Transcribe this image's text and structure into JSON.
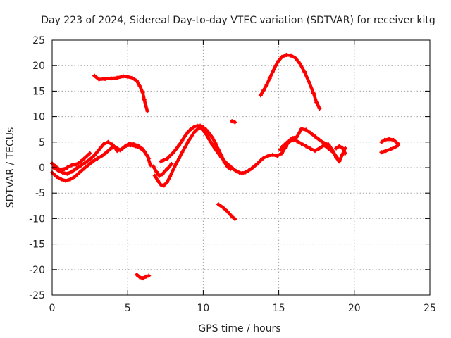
{
  "chart_data": {
    "type": "scatter",
    "title": "Day 223 of 2024, Sidereal Day-to-day VTEC variation (SDTVAR) for receiver kitg",
    "xlabel": "GPS time / hours",
    "ylabel": "SDTVAR / TECUs",
    "xlim": [
      0,
      25
    ],
    "ylim": [
      -25,
      25
    ],
    "xticks": [
      0,
      5,
      10,
      15,
      20,
      25
    ],
    "yticks": [
      -25,
      -20,
      -15,
      -10,
      -5,
      0,
      5,
      10,
      15,
      20,
      25
    ],
    "xtick_labels": [
      "0",
      "5",
      "10",
      "15",
      "20",
      "25"
    ],
    "ytick_labels": [
      "-25",
      "-20",
      "-15",
      "-10",
      "-5",
      "0",
      "5",
      "10",
      "15",
      "20",
      "25"
    ],
    "grid": true,
    "marker_color": "#ff0000",
    "series": [
      {
        "name": "track-1",
        "points": [
          [
            0.0,
            0.8
          ],
          [
            0.2,
            0.3
          ],
          [
            0.4,
            -0.2
          ],
          [
            0.6,
            -0.5
          ],
          [
            0.8,
            -0.3
          ],
          [
            1.0,
            0.0
          ],
          [
            1.3,
            0.5
          ],
          [
            1.6,
            0.6
          ],
          [
            1.9,
            1.2
          ],
          [
            2.2,
            2.0
          ],
          [
            2.5,
            2.8
          ]
        ]
      },
      {
        "name": "track-2",
        "points": [
          [
            0.0,
            -1.0
          ],
          [
            0.3,
            -1.8
          ],
          [
            0.6,
            -2.3
          ],
          [
            0.9,
            -2.6
          ],
          [
            1.2,
            -2.3
          ],
          [
            1.5,
            -1.8
          ],
          [
            1.8,
            -1.0
          ],
          [
            2.1,
            -0.2
          ],
          [
            2.4,
            0.5
          ],
          [
            2.7,
            1.2
          ],
          [
            3.0,
            1.8
          ],
          [
            3.3,
            2.3
          ],
          [
            3.6,
            3.0
          ],
          [
            3.9,
            3.8
          ],
          [
            4.2,
            4.0
          ],
          [
            4.5,
            3.4
          ],
          [
            4.8,
            4.1
          ],
          [
            5.1,
            4.7
          ],
          [
            5.4,
            4.6
          ],
          [
            5.7,
            4.3
          ],
          [
            6.0,
            3.6
          ],
          [
            6.3,
            2.3
          ],
          [
            6.5,
            0.5
          ]
        ]
      },
      {
        "name": "track-3",
        "points": [
          [
            0.1,
            0.0
          ],
          [
            0.4,
            -0.6
          ],
          [
            0.7,
            -1.0
          ],
          [
            1.0,
            -1.2
          ],
          [
            1.3,
            -0.8
          ],
          [
            1.6,
            -0.2
          ],
          [
            1.9,
            0.4
          ],
          [
            2.2,
            1.0
          ],
          [
            2.5,
            1.6
          ],
          [
            2.8,
            2.4
          ],
          [
            3.1,
            3.5
          ],
          [
            3.4,
            4.6
          ],
          [
            3.7,
            5.0
          ],
          [
            4.0,
            4.5
          ],
          [
            4.3,
            3.3
          ],
          [
            4.6,
            3.6
          ],
          [
            4.9,
            4.3
          ],
          [
            5.2,
            4.4
          ],
          [
            5.5,
            4.2
          ],
          [
            5.8,
            3.9
          ],
          [
            6.1,
            3.2
          ],
          [
            6.4,
            1.8
          ]
        ]
      },
      {
        "name": "track-4",
        "points": [
          [
            2.8,
            18.0
          ],
          [
            3.1,
            17.3
          ],
          [
            3.5,
            17.4
          ],
          [
            3.9,
            17.5
          ],
          [
            4.3,
            17.6
          ],
          [
            4.7,
            17.9
          ],
          [
            5.0,
            17.8
          ],
          [
            5.3,
            17.6
          ],
          [
            5.6,
            17.0
          ],
          [
            5.8,
            16.0
          ],
          [
            6.0,
            14.7
          ],
          [
            6.1,
            13.3
          ],
          [
            6.2,
            12.1
          ],
          [
            6.3,
            11.1
          ]
        ]
      },
      {
        "name": "track-5",
        "points": [
          [
            6.7,
            0.2
          ],
          [
            6.9,
            -0.8
          ],
          [
            7.1,
            -1.6
          ],
          [
            7.3,
            -1.3
          ],
          [
            7.5,
            -0.6
          ],
          [
            7.7,
            0.0
          ],
          [
            7.9,
            0.7
          ]
        ]
      },
      {
        "name": "track-6",
        "points": [
          [
            6.8,
            -1.6
          ],
          [
            7.0,
            -2.6
          ],
          [
            7.2,
            -3.4
          ],
          [
            7.4,
            -3.5
          ],
          [
            7.6,
            -2.9
          ],
          [
            7.8,
            -1.8
          ],
          [
            8.0,
            -0.5
          ],
          [
            8.2,
            0.7
          ],
          [
            8.4,
            1.8
          ],
          [
            8.6,
            3.0
          ],
          [
            8.8,
            4.0
          ],
          [
            9.0,
            5.1
          ],
          [
            9.2,
            6.0
          ],
          [
            9.4,
            6.9
          ],
          [
            9.6,
            7.5
          ],
          [
            9.8,
            7.8
          ],
          [
            10.0,
            7.3
          ],
          [
            10.2,
            6.5
          ],
          [
            10.4,
            5.5
          ],
          [
            10.6,
            4.5
          ],
          [
            10.8,
            3.6
          ],
          [
            11.0,
            2.8
          ],
          [
            11.2,
            2.0
          ],
          [
            11.4,
            1.3
          ],
          [
            11.6,
            0.7
          ],
          [
            11.8,
            0.2
          ],
          [
            12.0,
            -0.3
          ],
          [
            12.2,
            -0.7
          ],
          [
            12.4,
            -1.0
          ],
          [
            12.6,
            -1.1
          ],
          [
            12.8,
            -0.9
          ],
          [
            13.0,
            -0.6
          ],
          [
            13.2,
            -0.2
          ],
          [
            13.4,
            0.3
          ],
          [
            13.6,
            0.8
          ],
          [
            13.8,
            1.4
          ],
          [
            14.0,
            1.9
          ],
          [
            14.3,
            2.3
          ],
          [
            14.6,
            2.5
          ],
          [
            14.9,
            2.3
          ],
          [
            15.2,
            2.8
          ],
          [
            15.4,
            3.8
          ],
          [
            15.6,
            4.8
          ],
          [
            15.8,
            5.3
          ],
          [
            16.0,
            5.5
          ],
          [
            16.2,
            5.2
          ],
          [
            16.5,
            4.7
          ],
          [
            16.8,
            4.2
          ],
          [
            17.1,
            3.7
          ],
          [
            17.4,
            3.3
          ],
          [
            17.7,
            3.8
          ],
          [
            18.0,
            4.4
          ],
          [
            18.3,
            3.7
          ],
          [
            18.6,
            3.0
          ],
          [
            18.8,
            2.2
          ],
          [
            19.0,
            1.4
          ]
        ]
      },
      {
        "name": "track-7",
        "points": [
          [
            7.2,
            1.2
          ],
          [
            7.4,
            1.5
          ],
          [
            7.6,
            1.7
          ],
          [
            7.8,
            2.3
          ],
          [
            8.0,
            2.9
          ],
          [
            8.2,
            3.6
          ],
          [
            8.4,
            4.4
          ],
          [
            8.6,
            5.3
          ],
          [
            8.8,
            6.2
          ],
          [
            9.0,
            7.0
          ],
          [
            9.2,
            7.6
          ],
          [
            9.4,
            8.0
          ],
          [
            9.6,
            8.2
          ],
          [
            9.8,
            8.2
          ],
          [
            10.0,
            7.9
          ],
          [
            10.2,
            7.4
          ],
          [
            10.4,
            6.7
          ],
          [
            10.6,
            5.9
          ],
          [
            10.8,
            4.8
          ],
          [
            11.0,
            3.6
          ],
          [
            11.2,
            2.4
          ],
          [
            11.4,
            1.1
          ],
          [
            11.6,
            0.2
          ],
          [
            11.8,
            -0.3
          ]
        ]
      },
      {
        "name": "track-8",
        "points": [
          [
            11.0,
            -7.2
          ],
          [
            11.3,
            -7.8
          ],
          [
            11.6,
            -8.6
          ],
          [
            11.9,
            -9.6
          ],
          [
            12.1,
            -10.1
          ]
        ]
      },
      {
        "name": "track-9",
        "points": [
          [
            11.9,
            9.1
          ],
          [
            12.1,
            8.9
          ]
        ]
      },
      {
        "name": "track-10",
        "points": [
          [
            13.8,
            14.2
          ],
          [
            14.0,
            15.2
          ],
          [
            14.2,
            16.2
          ],
          [
            14.4,
            17.5
          ],
          [
            14.6,
            18.8
          ],
          [
            14.8,
            20.0
          ],
          [
            15.0,
            21.0
          ],
          [
            15.2,
            21.7
          ],
          [
            15.5,
            22.1
          ],
          [
            15.8,
            22.0
          ],
          [
            16.1,
            21.5
          ],
          [
            16.4,
            20.4
          ],
          [
            16.7,
            18.8
          ],
          [
            17.0,
            16.8
          ],
          [
            17.3,
            14.6
          ],
          [
            17.5,
            12.8
          ],
          [
            17.7,
            11.6
          ]
        ]
      },
      {
        "name": "track-11",
        "points": [
          [
            15.1,
            3.5
          ],
          [
            15.3,
            4.3
          ],
          [
            15.6,
            5.1
          ],
          [
            15.9,
            5.8
          ],
          [
            16.2,
            6.0
          ],
          [
            16.5,
            7.6
          ],
          [
            16.8,
            7.4
          ],
          [
            17.1,
            6.8
          ],
          [
            17.4,
            6.1
          ],
          [
            17.7,
            5.4
          ],
          [
            18.0,
            4.8
          ],
          [
            18.3,
            4.5
          ],
          [
            18.6,
            3.2
          ],
          [
            18.8,
            2.0
          ],
          [
            19.0,
            1.2
          ],
          [
            19.2,
            2.5
          ],
          [
            19.4,
            3.8
          ]
        ]
      },
      {
        "name": "track-12",
        "points": [
          [
            18.8,
            3.8
          ],
          [
            19.0,
            4.2
          ],
          [
            19.2,
            3.9
          ],
          [
            19.4,
            2.8
          ]
        ]
      },
      {
        "name": "track-13",
        "points": [
          [
            5.6,
            -21.0
          ],
          [
            5.8,
            -21.5
          ],
          [
            6.0,
            -21.7
          ],
          [
            6.2,
            -21.4
          ],
          [
            6.4,
            -21.2
          ]
        ]
      },
      {
        "name": "track-14",
        "points": [
          [
            21.8,
            5.0
          ],
          [
            22.0,
            5.4
          ],
          [
            22.3,
            5.6
          ],
          [
            22.6,
            5.4
          ],
          [
            22.9,
            4.7
          ]
        ]
      },
      {
        "name": "track-15",
        "points": [
          [
            21.8,
            3.0
          ],
          [
            22.1,
            3.3
          ],
          [
            22.4,
            3.6
          ],
          [
            22.7,
            4.0
          ],
          [
            22.9,
            4.4
          ]
        ]
      }
    ]
  }
}
